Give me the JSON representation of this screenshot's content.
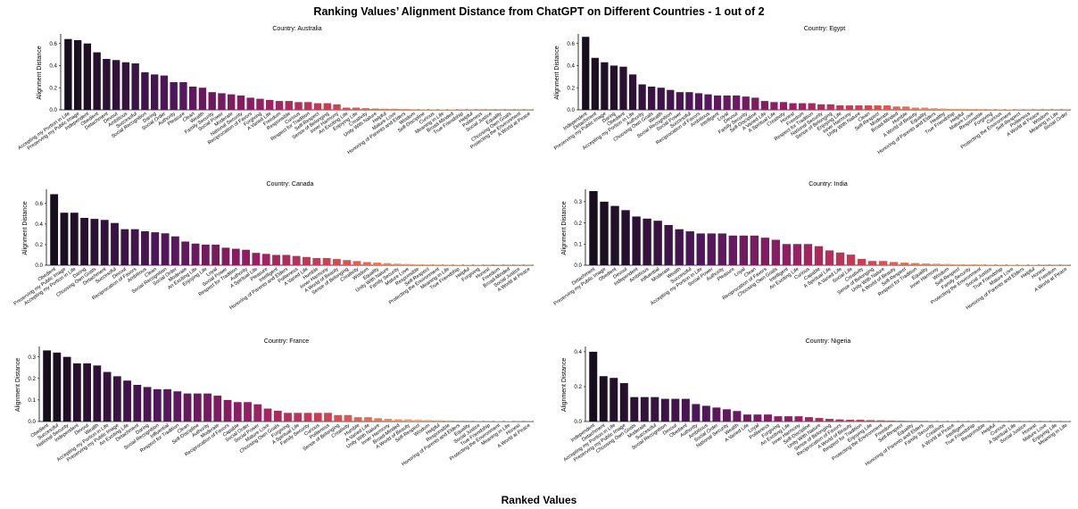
{
  "figure": {
    "title": "Ranking Values’ Alignment Distance from ChatGPT on Different Countries - 1 out of 2",
    "xlabel": "Ranked Values"
  },
  "chart_data": [
    {
      "type": "bar",
      "title": "Country: Australia",
      "ylabel": "Alignment Distance",
      "yticks": [
        0.0,
        0.2,
        0.4,
        0.6
      ],
      "ylim": [
        0,
        0.67
      ],
      "categories": [
        "Accepting my Portion in Life",
        "Preserving my Public Image",
        "Independent",
        "Obedient",
        "Detachment",
        "Devout",
        "Ambitious",
        "Successful",
        "Social Recognition",
        "Daring",
        "Social Order",
        "Authority",
        "Pleasure",
        "Clean",
        "Wealth",
        "Family Security",
        "Social Power",
        "Moderate",
        "National Security",
        "Reciprocation of Favors",
        "Forgiving",
        "A Varied Life",
        "Freedom",
        "Responsible",
        "Curious",
        "Respect for Tradition",
        "Self-Respect",
        "Sense of Belonging",
        "Inner Harmony",
        "An Exciting Life",
        "Enjoying Life",
        "Creativity",
        "Unity With Nature",
        "Helpful",
        "Mature Love",
        "Honoring of Parents and Elders",
        "Wisdom",
        "Self-Discipline",
        "Curious",
        "Meaning in Life",
        "Broad-Minded",
        "True Friendship",
        "Helpful",
        "Politeness",
        "Social Justice",
        "Equality",
        "Choosing Own Goals",
        "Protecting the Environment",
        "A World at Peace"
      ],
      "values": [
        0.64,
        0.63,
        0.6,
        0.52,
        0.46,
        0.45,
        0.43,
        0.42,
        0.34,
        0.32,
        0.31,
        0.25,
        0.25,
        0.21,
        0.2,
        0.16,
        0.15,
        0.14,
        0.13,
        0.11,
        0.1,
        0.09,
        0.08,
        0.08,
        0.07,
        0.07,
        0.06,
        0.06,
        0.05,
        0.02,
        0.02,
        0.015,
        0.012,
        0.01,
        0.01,
        0.008,
        0.006,
        0.005,
        0.005,
        0.004,
        0.004,
        0.003,
        0.003,
        0.002,
        0.002,
        0.002,
        0.001,
        0.001,
        0.001
      ]
    },
    {
      "type": "bar",
      "title": "Country: Egypt",
      "ylabel": "Alignment Distance",
      "yticks": [
        0.0,
        0.2,
        0.4,
        0.6
      ],
      "ylim": [
        0,
        0.67
      ],
      "categories": [
        "Independent",
        "Detachment",
        "Preserving my Public Image",
        "Daring",
        "Obedient",
        "Accepting my Portion in Life",
        "Authority",
        "Choosing Own Goals",
        "Wealth",
        "Social Recognition",
        "Social Power",
        "Successful",
        "Reciprocation of Favors",
        "Ambitious",
        "Intelligent",
        "Loyal",
        "Devout",
        "Family Security",
        "Self-Discipline",
        "A Varied Life",
        "A Spiritual Life",
        "Creativity",
        "Honest",
        "Freedom",
        "Respect for Tradition",
        "National Security",
        "Sense of Belonging",
        "Enjoying Life",
        "Inner Harmony",
        "Unity With Nature",
        "Clean",
        "Self-Respect",
        "Moderate",
        "Broad-Minded",
        "Humble",
        "A World of Beauty",
        "Equality",
        "Honoring of Parents and Elders",
        "Healthy",
        "True Friendship",
        "Helpful",
        "Mature Love",
        "Responsible",
        "Forgiving",
        "Curious",
        "Protecting the Environment",
        "Self-Respect",
        "Politeness",
        "A World at Peace",
        "Wisdom",
        "Meaning in Life",
        "Social Order"
      ],
      "values": [
        0.66,
        0.47,
        0.43,
        0.4,
        0.39,
        0.32,
        0.23,
        0.21,
        0.2,
        0.18,
        0.16,
        0.16,
        0.15,
        0.14,
        0.13,
        0.13,
        0.13,
        0.12,
        0.11,
        0.08,
        0.07,
        0.07,
        0.06,
        0.06,
        0.06,
        0.05,
        0.05,
        0.04,
        0.04,
        0.04,
        0.04,
        0.04,
        0.04,
        0.03,
        0.03,
        0.02,
        0.02,
        0.015,
        0.012,
        0.01,
        0.01,
        0.008,
        0.007,
        0.006,
        0.005,
        0.004,
        0.003,
        0.003,
        0.002,
        0.002,
        0.001,
        0.001
      ]
    },
    {
      "type": "bar",
      "title": "Country: Canada",
      "ylabel": "Alignment Distance",
      "yticks": [
        0.0,
        0.2,
        0.4,
        0.6
      ],
      "ylim": [
        0,
        0.72
      ],
      "categories": [
        "Obedient",
        "Preserving my Public Image",
        "Accepting my Portion in Life",
        "Daring",
        "Choosing Own Goals",
        "Detachment",
        "Successful",
        "Devout",
        "Reciprocation of Favors",
        "Ambitious",
        "Clean",
        "Social Recognition",
        "Social Order",
        "Moderate",
        "An Exciting Life",
        "Enjoying Life",
        "Loyal",
        "Social Power",
        "Respect for Tradition",
        "Authority",
        "A Spiritual Life",
        "Pleasure",
        "Intelligent",
        "Honoring of Parents and Elders",
        "Politeness",
        "A Varied Life",
        "Humble",
        "Inner Harmony",
        "A World of Beauty",
        "Sense of Belonging",
        "Creativity",
        "Wisdom",
        "Equality",
        "Unity With Nature",
        "Family Security",
        "Mature Love",
        "Responsible",
        "Self-Respect",
        "Protecting the Environment",
        "Meaning in Life",
        "True Friendship",
        "Helpful",
        "Forgiving",
        "Honest",
        "Freedom",
        "Broad-Minded",
        "Social Justice",
        "A World at Peace"
      ],
      "values": [
        0.69,
        0.51,
        0.51,
        0.46,
        0.45,
        0.44,
        0.41,
        0.35,
        0.35,
        0.33,
        0.32,
        0.31,
        0.28,
        0.23,
        0.21,
        0.2,
        0.2,
        0.17,
        0.16,
        0.15,
        0.12,
        0.11,
        0.1,
        0.1,
        0.09,
        0.08,
        0.07,
        0.07,
        0.06,
        0.05,
        0.04,
        0.03,
        0.025,
        0.02,
        0.015,
        0.012,
        0.01,
        0.008,
        0.007,
        0.006,
        0.005,
        0.004,
        0.004,
        0.003,
        0.003,
        0.002,
        0.002,
        0.001
      ]
    },
    {
      "type": "bar",
      "title": "Country: India",
      "ylabel": "Alignment Distance",
      "yticks": [
        0.0,
        0.1,
        0.2,
        0.3
      ],
      "ylim": [
        0,
        0.35
      ],
      "categories": [
        "Detachment",
        "Preserving my Public Image",
        "Obedient",
        "Devout",
        "Independent",
        "Ambitious",
        "Influential",
        "Moderate",
        "Wealth",
        "Successful",
        "Accepting my Portion in Life",
        "Social Power",
        "Authority",
        "Pleasure",
        "Loyal",
        "Clean",
        "Reciprocation of Favors",
        "Choosing Own Goals",
        "Intelligent",
        "An Exciting Life",
        "Curious",
        "Capable",
        "A Spiritual Life",
        "A Varied Life",
        "Social Life",
        "Creativity",
        "Sense of Belonging",
        "Unity With Nature",
        "A World of Beauty",
        "Self-Respect",
        "Respect for Tradition",
        "Equality",
        "Inner Harmony",
        "Wisdom",
        "Self-Respect",
        "Family Security",
        "Protecting the Environment",
        "Social Justice",
        "True Friendship",
        "Mature Love",
        "Honoring of Parents and Elders",
        "Helpful",
        "Honest",
        "Freedom",
        "A World at Peace"
      ],
      "values": [
        0.35,
        0.3,
        0.28,
        0.26,
        0.23,
        0.22,
        0.21,
        0.19,
        0.17,
        0.16,
        0.15,
        0.15,
        0.15,
        0.14,
        0.14,
        0.14,
        0.13,
        0.12,
        0.1,
        0.1,
        0.1,
        0.09,
        0.07,
        0.06,
        0.05,
        0.03,
        0.02,
        0.02,
        0.015,
        0.012,
        0.01,
        0.008,
        0.007,
        0.006,
        0.005,
        0.004,
        0.004,
        0.003,
        0.003,
        0.002,
        0.002,
        0.002,
        0.001,
        0.001,
        0.001
      ]
    },
    {
      "type": "bar",
      "title": "Country: France",
      "ylabel": "Alignment Distance",
      "yticks": [
        0.0,
        0.1,
        0.2,
        0.3
      ],
      "ylim": [
        0,
        0.34
      ],
      "categories": [
        "Obedient",
        "Successful",
        "National Security",
        "Independent",
        "Devout",
        "Wealth",
        "Accepting my Portion in Life",
        "Preserving my Public Image",
        "An Exciting Life",
        "Detachment",
        "Daring",
        "Social Recognition",
        "Influential",
        "Respect for Tradition",
        "Clean",
        "Self-Discipline",
        "Authority",
        "Moderate",
        "Reciprocation of Favors",
        "Capable",
        "Social Order",
        "Social Power",
        "Mature Love",
        "Choosing Own Goals",
        "Forgiving",
        "A Spiritual Life",
        "Family Security",
        "Curious",
        "Politeness",
        "Sense of Belonging",
        "Creativity",
        "Humble",
        "A Varied Life",
        "Unity With Nature",
        "Inner Harmony",
        "Broad-Minded",
        "A World of Beauty",
        "Self-Respect",
        "Wisdom",
        "Helpful",
        "Responsible",
        "Honoring of Parents and Elders",
        "Equality",
        "Social Justice",
        "True Friendship",
        "Protecting the Environment",
        "Meaning in Life",
        "Honest",
        "A World at Peace"
      ],
      "values": [
        0.33,
        0.32,
        0.3,
        0.27,
        0.27,
        0.26,
        0.23,
        0.21,
        0.19,
        0.17,
        0.16,
        0.15,
        0.15,
        0.14,
        0.13,
        0.13,
        0.13,
        0.12,
        0.1,
        0.09,
        0.09,
        0.08,
        0.06,
        0.05,
        0.04,
        0.04,
        0.04,
        0.04,
        0.04,
        0.03,
        0.03,
        0.02,
        0.02,
        0.015,
        0.012,
        0.01,
        0.01,
        0.008,
        0.007,
        0.006,
        0.005,
        0.004,
        0.004,
        0.003,
        0.003,
        0.002,
        0.002,
        0.001,
        0.001
      ]
    },
    {
      "type": "bar",
      "title": "Country: Nigeria",
      "ylabel": "Alignment Distance",
      "yticks": [
        0.0,
        0.2,
        0.4
      ],
      "ylim": [
        0,
        0.42
      ],
      "categories": [
        "Independent",
        "Detachment",
        "Accepting my Portion in Life",
        "Preserving my Public Image",
        "Choosing Own Goals",
        "Moderate",
        "Successful",
        "Social Recognition",
        "Devout",
        "Obedient",
        "Authority",
        "Ambitious",
        "Social Order",
        "National Security",
        "Wealth",
        "A Varied Life",
        "Loyal",
        "Politeness",
        "Forgiving",
        "An Exciting Life",
        "Inner Harmony",
        "Self-Discipline",
        "Unity With Nature",
        "Sense of Belonging",
        "Reciprocation of Favors",
        "A World of Beauty",
        "Respect for Tradition",
        "Enjoying Life",
        "Protecting the Environment",
        "Freedom",
        "Self-Respect",
        "Equality",
        "Honoring of Parents and Elders",
        "Family Security",
        "Creativity",
        "A World at Peace",
        "Intelligent",
        "True Friendship",
        "Responsible",
        "Helpful",
        "Curious",
        "A Spiritual Life",
        "Social Justice",
        "Honest",
        "Mature Love",
        "Enjoying Life",
        "Meaning in Life"
      ],
      "values": [
        0.4,
        0.26,
        0.25,
        0.22,
        0.14,
        0.14,
        0.14,
        0.13,
        0.13,
        0.13,
        0.1,
        0.09,
        0.08,
        0.07,
        0.06,
        0.04,
        0.04,
        0.04,
        0.03,
        0.03,
        0.03,
        0.025,
        0.02,
        0.015,
        0.012,
        0.01,
        0.01,
        0.008,
        0.007,
        0.006,
        0.005,
        0.004,
        0.004,
        0.003,
        0.003,
        0.003,
        0.002,
        0.002,
        0.002,
        0.002,
        0.001,
        0.001,
        0.001,
        0.001,
        0.001,
        0.001,
        0.001
      ]
    }
  ]
}
